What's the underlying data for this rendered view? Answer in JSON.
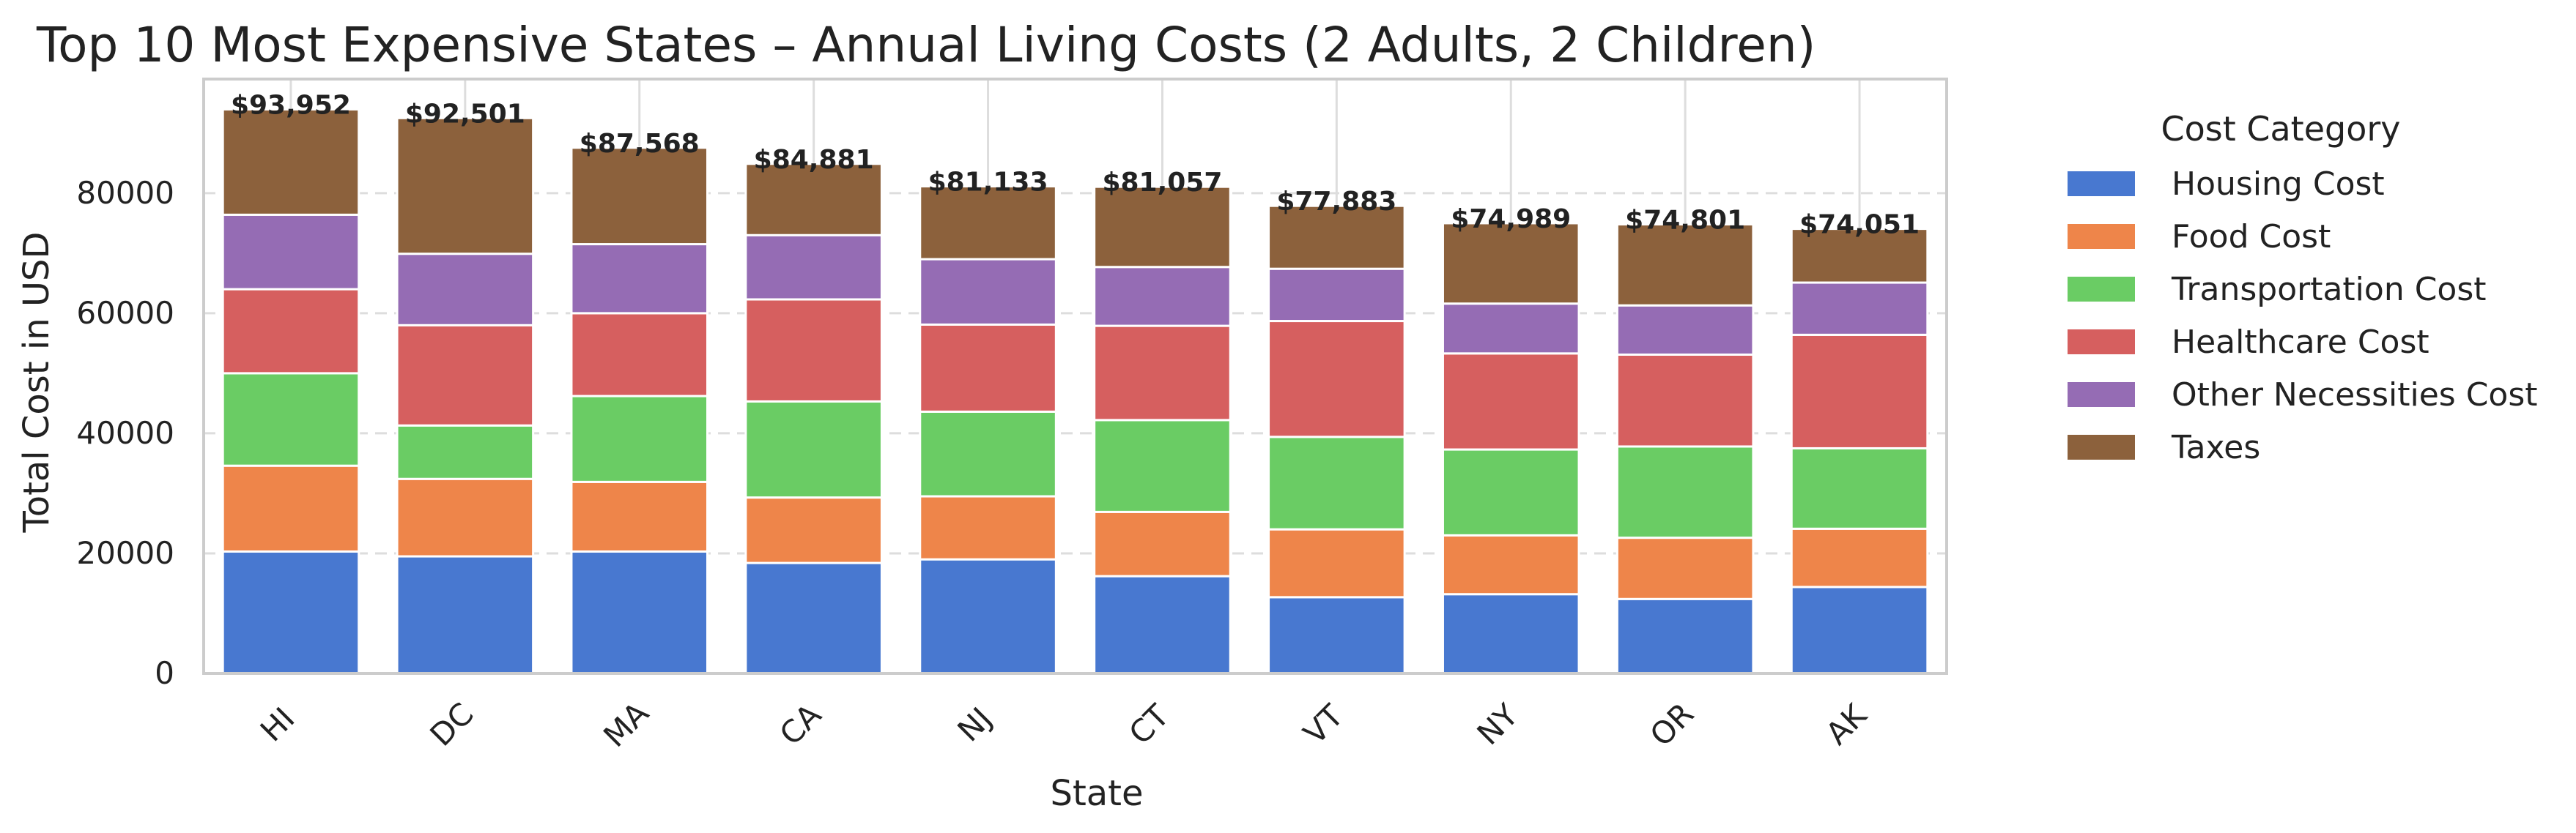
{
  "chart_data": {
    "type": "bar",
    "stacked": true,
    "title": "Top 10 Most Expensive States – Annual Living Costs (2 Adults, 2 Children)",
    "xlabel": "State",
    "ylabel": "Total Cost in USD",
    "categories": [
      "HI",
      "DC",
      "MA",
      "CA",
      "NJ",
      "CT",
      "VT",
      "NY",
      "OR",
      "AK"
    ],
    "totals": [
      "$93,952",
      "$92,501",
      "$87,568",
      "$84,881",
      "$81,133",
      "$81,057",
      "$77,883",
      "$74,989",
      "$74,801",
      "$74,051"
    ],
    "yticks": [
      0,
      20000,
      40000,
      60000,
      80000
    ],
    "ylim": [
      0,
      99000
    ],
    "grid": true,
    "legend": {
      "title": "Cost Category",
      "placement": "outside-right"
    },
    "series": [
      {
        "name": "Housing Cost",
        "color": "#4878d0",
        "values": [
          20300,
          19500,
          20300,
          18400,
          19000,
          16200,
          12700,
          13200,
          12400,
          14400
        ]
      },
      {
        "name": "Food Cost",
        "color": "#ee854a",
        "values": [
          14300,
          12900,
          11600,
          10900,
          10500,
          10700,
          11300,
          9800,
          10200,
          9700
        ]
      },
      {
        "name": "Transportation Cost",
        "color": "#6acc64",
        "values": [
          15400,
          8900,
          14300,
          16000,
          14100,
          15300,
          15400,
          14300,
          15200,
          13400
        ]
      },
      {
        "name": "Healthcare Cost",
        "color": "#d65f5f",
        "values": [
          14000,
          16700,
          13800,
          17000,
          14500,
          15700,
          19300,
          16000,
          15300,
          18900
        ]
      },
      {
        "name": "Other Necessities Cost",
        "color": "#956cb4",
        "values": [
          12400,
          11900,
          11500,
          10700,
          10900,
          9800,
          8700,
          8300,
          8200,
          8700
        ]
      },
      {
        "name": "Taxes",
        "color": "#8c613c",
        "values": [
          17552,
          22601,
          16068,
          11881,
          12133,
          13357,
          10483,
          13389,
          13501,
          8951
        ]
      }
    ]
  }
}
